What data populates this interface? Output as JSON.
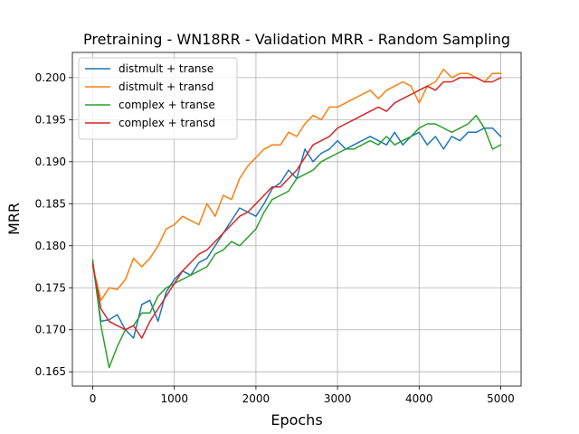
{
  "chart_data": {
    "type": "line",
    "title": "Pretraining - WN18RR - Validation MRR - Random Sampling",
    "xlabel": "Epochs",
    "ylabel": "MRR",
    "xlim": [
      -250,
      5250
    ],
    "ylim": [
      0.1633,
      0.203
    ],
    "xticks": [
      0,
      1000,
      2000,
      3000,
      4000,
      5000
    ],
    "yticks": [
      0.165,
      0.17,
      0.175,
      0.18,
      0.185,
      0.19,
      0.195,
      0.2
    ],
    "ytick_labels": [
      "0.165",
      "0.170",
      "0.175",
      "0.180",
      "0.185",
      "0.190",
      "0.195",
      "0.200"
    ],
    "grid": true,
    "legend_position": "top-left",
    "x": [
      0,
      100,
      200,
      300,
      400,
      500,
      600,
      700,
      800,
      900,
      1000,
      1100,
      1200,
      1300,
      1400,
      1500,
      1600,
      1700,
      1800,
      1900,
      2000,
      2100,
      2200,
      2300,
      2400,
      2500,
      2600,
      2700,
      2800,
      2900,
      3000,
      3100,
      3200,
      3300,
      3400,
      3500,
      3600,
      3700,
      3800,
      3900,
      4000,
      4100,
      4200,
      4300,
      4400,
      4500,
      4600,
      4700,
      4800,
      4900,
      5000
    ],
    "series": [
      {
        "name": "distmult + transe",
        "color": "#1f77b4",
        "values": [
          0.178,
          0.171,
          0.1712,
          0.1718,
          0.17,
          0.169,
          0.173,
          0.1735,
          0.171,
          0.1745,
          0.176,
          0.177,
          0.1765,
          0.178,
          0.1785,
          0.18,
          0.1815,
          0.183,
          0.1845,
          0.184,
          0.1835,
          0.185,
          0.1868,
          0.1875,
          0.189,
          0.188,
          0.1915,
          0.19,
          0.191,
          0.1915,
          0.1925,
          0.1915,
          0.192,
          0.1925,
          0.193,
          0.1925,
          0.192,
          0.1935,
          0.192,
          0.193,
          0.1935,
          0.192,
          0.193,
          0.1915,
          0.193,
          0.1925,
          0.1935,
          0.1935,
          0.194,
          0.194,
          0.193
        ]
      },
      {
        "name": "distmult + transd",
        "color": "#ff7f0e",
        "values": [
          0.1775,
          0.1735,
          0.175,
          0.1748,
          0.176,
          0.1785,
          0.1775,
          0.1785,
          0.18,
          0.182,
          0.1825,
          0.1835,
          0.183,
          0.1825,
          0.185,
          0.1835,
          0.186,
          0.1855,
          0.188,
          0.1895,
          0.1905,
          0.1915,
          0.192,
          0.192,
          0.1935,
          0.193,
          0.1945,
          0.1955,
          0.195,
          0.1965,
          0.1965,
          0.197,
          0.1975,
          0.198,
          0.1985,
          0.1975,
          0.1985,
          0.199,
          0.1995,
          0.199,
          0.197,
          0.199,
          0.1995,
          0.201,
          0.2,
          0.2005,
          0.2005,
          0.2,
          0.1995,
          0.2005,
          0.2005
        ]
      },
      {
        "name": "complex + transe",
        "color": "#2ca02c",
        "values": [
          0.1783,
          0.1705,
          0.1655,
          0.168,
          0.17,
          0.1705,
          0.172,
          0.172,
          0.174,
          0.175,
          0.1755,
          0.176,
          0.1765,
          0.177,
          0.1775,
          0.179,
          0.1795,
          0.1805,
          0.18,
          0.181,
          0.182,
          0.184,
          0.1855,
          0.186,
          0.1865,
          0.188,
          0.1885,
          0.189,
          0.19,
          0.1905,
          0.191,
          0.1915,
          0.1915,
          0.192,
          0.1925,
          0.192,
          0.193,
          0.192,
          0.1925,
          0.193,
          0.194,
          0.1945,
          0.1945,
          0.194,
          0.1935,
          0.194,
          0.1945,
          0.1955,
          0.194,
          0.1915,
          0.192
        ]
      },
      {
        "name": "complex + transd",
        "color": "#d62728",
        "values": [
          0.1778,
          0.1725,
          0.171,
          0.1705,
          0.17,
          0.1705,
          0.169,
          0.171,
          0.1725,
          0.174,
          0.1755,
          0.177,
          0.178,
          0.179,
          0.1795,
          0.1805,
          0.1815,
          0.1825,
          0.1835,
          0.184,
          0.185,
          0.186,
          0.187,
          0.187,
          0.188,
          0.189,
          0.1905,
          0.192,
          0.1925,
          0.193,
          0.194,
          0.1945,
          0.195,
          0.1955,
          0.196,
          0.1965,
          0.196,
          0.197,
          0.1975,
          0.198,
          0.1985,
          0.199,
          0.1985,
          0.1995,
          0.1995,
          0.2,
          0.2,
          0.2,
          0.1995,
          0.1995,
          0.2
        ]
      }
    ]
  }
}
